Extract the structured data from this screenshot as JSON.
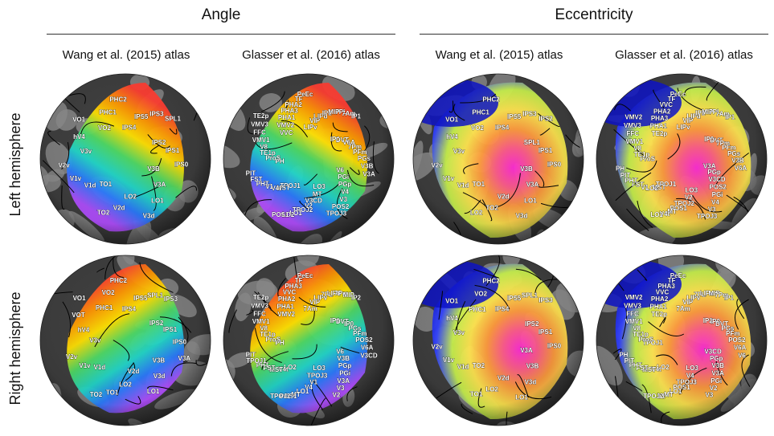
{
  "headers": {
    "angle": "Angle",
    "eccentricity": "Eccentricity"
  },
  "columns": [
    "Wang et al. (2015) atlas",
    "Glasser et al. (2016) atlas",
    "Wang et al. (2015) atlas",
    "Glasser et al. (2016) atlas"
  ],
  "rows": [
    "Left hemisphere",
    "Right hemisphere"
  ],
  "colors": {
    "cortex_dark": "#3c3c3c",
    "cortex_light": "#8a8a8a",
    "angle_palette": [
      "#ff3b30",
      "#ff9500",
      "#ffe000",
      "#4cd964",
      "#1fd6c8",
      "#2979ff",
      "#b14dff"
    ],
    "eccentricity_palette": [
      "#ff2ad4",
      "#ff5a8a",
      "#ff9a3c",
      "#ffe44d",
      "#c6f04a",
      "#3040ff",
      "#0a10c8"
    ]
  },
  "panels": [
    {
      "row": "Left hemisphere",
      "col": 0,
      "map": "angle",
      "labels": [
        "IPS4",
        "IPS5",
        "IPS3",
        "SPL1",
        "IPS2",
        "IPS1",
        "IPS0",
        "V3B",
        "V3A",
        "LO1",
        "V3d",
        "LO2",
        "V2d",
        "TO2",
        "TO1",
        "V1d",
        "V1v",
        "V2v",
        "V3v",
        "hV4",
        "VO1",
        "VO2",
        "PHC1",
        "PHC2"
      ]
    },
    {
      "row": "Left hemisphere",
      "col": 1,
      "map": "angle",
      "labels": [
        "LIPv",
        "VIP",
        "LIPd",
        "IP2",
        "MIP",
        "7PL",
        "7Am",
        "IP1",
        "IP0",
        "DVT",
        "V6A",
        "7Pm",
        "PFm",
        "PGs",
        "V3B",
        "V3A",
        "V6",
        "PGi",
        "PGp",
        "V4",
        "V3",
        "POS2",
        "TPOJ3",
        "LO3",
        "MT",
        "V3CD",
        "V2",
        "TPOJ2",
        "LO1",
        "LO2",
        "POS1",
        "TPOJ1",
        "MST",
        "V4t",
        "V1",
        "PHT",
        "FST",
        "PIT",
        "PH",
        "ProS",
        "TE1p",
        "V8",
        "VMV1",
        "FFC",
        "VMV3",
        "TE2p",
        "VVC",
        "VMV2",
        "PHA1",
        "PHA3",
        "PHA2",
        "TF",
        "PeEc"
      ]
    },
    {
      "row": "Left hemisphere",
      "col": 2,
      "map": "eccentricity",
      "labels": [
        "IPS4",
        "IPS5",
        "IPS3",
        "IPS2",
        "SPL1",
        "IPS1",
        "IPS0",
        "V3B",
        "V3A",
        "LO1",
        "V3d",
        "V2d",
        "TO2",
        "LO2",
        "TO1",
        "V1d",
        "V1v",
        "V2v",
        "V3v",
        "hV4",
        "VO1",
        "VO2",
        "PHC1",
        "PHC2"
      ]
    },
    {
      "row": "Left hemisphere",
      "col": 3,
      "map": "eccentricity",
      "labels": [
        "LIPv",
        "VIP",
        "LIPd",
        "IP2",
        "MIP",
        "7PL",
        "7Am",
        "IP1",
        "IP0",
        "DVT",
        "7Pm",
        "PFm",
        "PGs",
        "V3B",
        "V6A",
        "V3A",
        "PGp",
        "V3CD",
        "POS2",
        "PGi",
        "V4",
        "V3",
        "TPOJ3",
        "LO3",
        "V2",
        "TPOJ2",
        "POS1",
        "MT",
        "V4t",
        "LO1",
        "TPOJ1",
        "MST",
        "LO2",
        "V1",
        "FST",
        "PHT",
        "PIT",
        "PH",
        "ProS",
        "TE1p",
        "V8",
        "VMV1",
        "FFC",
        "VMV3",
        "VMV2",
        "TE2p",
        "PHA1",
        "PHA3",
        "PHA2",
        "VVC",
        "TF",
        "PeEc"
      ]
    },
    {
      "row": "Right hemisphere",
      "col": 0,
      "map": "angle",
      "labels": [
        "IPS4",
        "IPS5",
        "SPL1",
        "IPS3",
        "IPS2",
        "IPS1",
        "IPS0",
        "V3A",
        "V3B",
        "V3d",
        "LO1",
        "V2d",
        "LO2",
        "TO1",
        "TO2",
        "V1d",
        "V1v",
        "V2v",
        "V3v",
        "hV4",
        "VOT",
        "VO1",
        "PHC1",
        "VO2",
        "PHC2"
      ]
    },
    {
      "row": "Right hemisphere",
      "col": 1,
      "map": "angle",
      "labels": [
        "7Am",
        "VIP",
        "LIPv",
        "7PL",
        "LIPd",
        "7Pm",
        "MIP",
        "IP2",
        "IP1",
        "DVT",
        "IP0",
        "PGs",
        "PFm",
        "POS2",
        "V6A",
        "V3CD",
        "V6",
        "V3B",
        "PGp",
        "PGi",
        "V3A",
        "V3",
        "V2",
        "LO3",
        "TPOJ3",
        "V1",
        "V4",
        "LO1",
        "MT",
        "POS1",
        "TPOJ2",
        "LO2",
        "V4t",
        "MST",
        "FST",
        "PHT",
        "TPOJ1",
        "PIT",
        "PH",
        "ProS",
        "TE1p",
        "V8",
        "VMV1",
        "FFC",
        "VMV3",
        "TE2p",
        "VMV2",
        "PHA1",
        "PHA2",
        "VVC",
        "PHA3",
        "TF",
        "PeEc"
      ]
    },
    {
      "row": "Right hemisphere",
      "col": 2,
      "map": "eccentricity",
      "labels": [
        "IPS4",
        "IPS5",
        "SPL1",
        "IPS3",
        "IPS2",
        "IPS1",
        "IPS0",
        "V3A",
        "V3B",
        "V3d",
        "LO1",
        "V2d",
        "LO2",
        "TO1",
        "TO2",
        "V1d",
        "V1v",
        "V2v",
        "V3v",
        "hV4",
        "VO1",
        "PHC1",
        "VO2",
        "PHC2"
      ]
    },
    {
      "row": "Right hemisphere",
      "col": 3,
      "map": "eccentricity",
      "labels": [
        "7Am",
        "VIP",
        "LIPv",
        "7PL",
        "LIPd",
        "MIP",
        "7Pm",
        "IP1",
        "IP2",
        "IP0",
        "DVT",
        "PGs",
        "PFm",
        "POS2",
        "V6A",
        "V6",
        "V3CD",
        "PGp",
        "V3B",
        "V3A",
        "PGi",
        "V2",
        "V3",
        "LO3",
        "V4",
        "TPOJ3",
        "POS1",
        "LO1",
        "MT",
        "V1",
        "TPOJ2",
        "LO2",
        "V4t",
        "MST",
        "FST",
        "PHT",
        "PIT",
        "PH",
        "TPOJ1",
        "ProS",
        "TE1p",
        "V8",
        "VMV1",
        "FFC",
        "VMV3",
        "VMV2",
        "TE2p",
        "PHA1",
        "PHA2",
        "VVC",
        "PHA3",
        "TF",
        "PeEc"
      ]
    }
  ]
}
